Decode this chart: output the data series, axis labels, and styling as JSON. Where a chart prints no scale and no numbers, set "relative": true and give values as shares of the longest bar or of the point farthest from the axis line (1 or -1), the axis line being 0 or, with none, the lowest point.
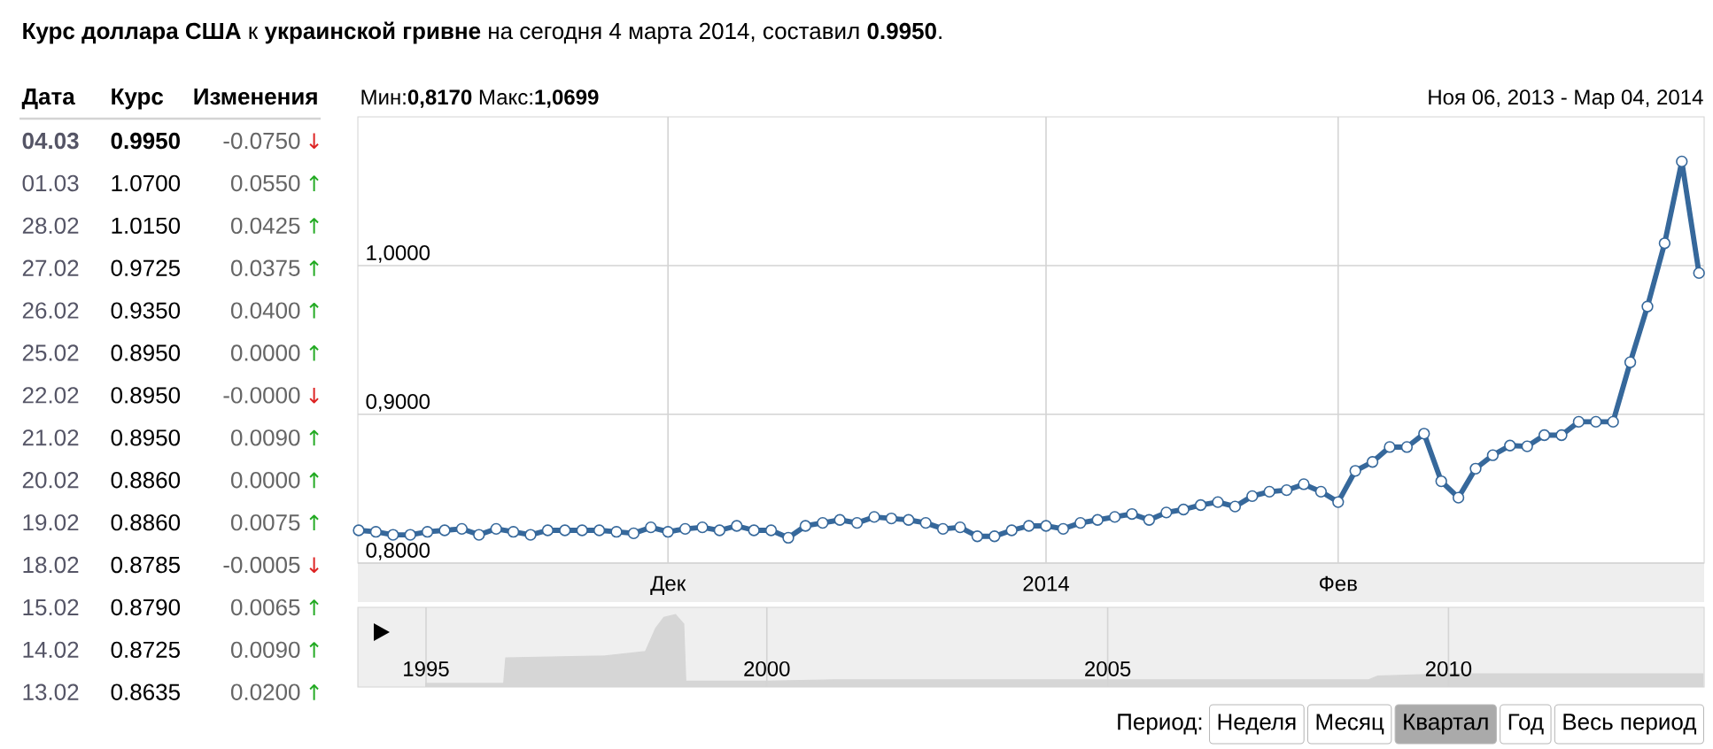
{
  "chart_data": [
    {
      "type": "other",
      "title": "**Курс доллара США** к **украинской гривне** на сегодня 4 марта 2014, составил **0.9950**.",
      "annotations": [
        "Дата",
        "Курс",
        "Изменения",
        "04.03",
        "0.9950",
        "-0.0750",
        "↓",
        "01.03",
        "1.0700",
        "0.0550",
        "↑",
        "28.02",
        "1.0150",
        "0.0425",
        "↑",
        "27.02",
        "0.9725",
        "0.0375",
        "↑",
        "26.02",
        "0.9350",
        "0.0400",
        "↑",
        "25.02",
        "0.8950",
        "0.0000",
        "↑",
        "22.02",
        "0.8950",
        "-0.0000",
        "↓",
        "21.02",
        "0.8950",
        "0.0090",
        "↑",
        "20.02",
        "0.8860",
        "0.0000",
        "↑",
        "19.02",
        "0.8860",
        "0.0075",
        "↑",
        "18.02",
        "0.8785",
        "-0.0005",
        "↓",
        "15.02",
        "0.8790",
        "0.0065",
        "↑",
        "14.02",
        "0.8725",
        "0.0090",
        "↑",
        "13.02",
        "0.8635",
        "0.0200",
        "↑"
      ]
    },
    {
      "type": "line",
      "subtitle": "Мин:**0,8170** Макс:**1,0699**",
      "annotations": [
        "Ноя 06, 2013 - Мар 04, 2014"
      ],
      "categories": [
        null,
        null,
        null,
        null,
        null,
        null,
        null,
        null,
        null,
        null,
        null,
        null,
        null,
        null,
        null,
        null,
        null,
        null,
        "Дек",
        null,
        null,
        null,
        null,
        null,
        null,
        null,
        null,
        null,
        null,
        null,
        null,
        null,
        null,
        null,
        null,
        null,
        null,
        null,
        null,
        null,
        "2014",
        null,
        null,
        null,
        null,
        null,
        null,
        null,
        null,
        null,
        null,
        null,
        null,
        null,
        null,
        null,
        null,
        "Фев",
        null,
        null,
        null,
        null,
        null,
        null,
        null,
        null,
        null,
        null,
        null,
        null,
        null,
        null,
        null,
        null,
        null,
        null,
        null,
        null,
        null
      ],
      "series": [
        {
          "color": "#36689b",
          "values": [
            0.822,
            0.821,
            0.819,
            0.819,
            0.821,
            0.822,
            0.823,
            0.819,
            0.823,
            0.821,
            0.819,
            0.822,
            0.822,
            0.822,
            0.822,
            0.821,
            0.82,
            0.824,
            0.821,
            0.823,
            0.824,
            0.822,
            0.825,
            0.822,
            0.822,
            0.817,
            0.825,
            0.827,
            0.829,
            0.827,
            0.831,
            0.83,
            0.829,
            0.827,
            0.823,
            0.824,
            0.818,
            0.818,
            0.822,
            0.825,
            0.825,
            0.823,
            0.827,
            0.829,
            0.831,
            0.833,
            0.829,
            0.834,
            0.836,
            0.839,
            0.841,
            0.838,
            0.845,
            0.848,
            0.849,
            0.853,
            0.848,
            0.841,
            0.862,
            0.868,
            0.878,
            0.878,
            0.887,
            0.855,
            0.844,
            0.8635,
            0.8725,
            0.879,
            0.8785,
            0.886,
            0.886,
            0.895,
            0.895,
            0.895,
            0.935,
            0.9725,
            1.015,
            1.07,
            0.995
          ]
        }
      ],
      "ylim": [
        0.8,
        1.1
      ],
      "yticks": [
        {
          "value": 0.8,
          "label": "0,8000"
        },
        {
          "value": 0.9,
          "label": "0,9000"
        },
        {
          "value": 1.0,
          "label": "1,0000"
        }
      ],
      "grid": true,
      "marker": "circle"
    },
    {
      "type": "area",
      "relative": true,
      "x": [
        1995,
        1996.14,
        1996.17,
        1997.63,
        1998.22,
        1998.37,
        1998.49,
        1998.66,
        1998.78,
        1998.81,
        2000,
        2001,
        2008.83,
        2008.96,
        2010,
        2013.73
      ],
      "values": [
        0.05,
        0.05,
        0.4,
        0.43,
        0.49,
        0.81,
        0.96,
        1,
        0.87,
        0.08,
        0.08,
        0.1,
        0.1,
        0.15,
        0.18,
        0.18
      ],
      "color": "#d6d6d6",
      "xlim": [
        1994,
        2013.75
      ],
      "xticks": [
        1995,
        2000,
        2005,
        2010
      ],
      "grid": "x"
    },
    {
      "type": "other",
      "title": "Период:",
      "annotations": [
        "Неделя",
        "Месяц",
        "Квартал",
        "Год",
        "Весь период"
      ]
    }
  ]
}
